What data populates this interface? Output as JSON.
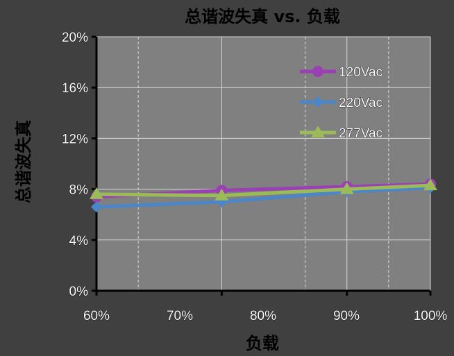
{
  "chart_data": {
    "type": "line",
    "title": "总谐波失真 vs. 负载",
    "xlabel": "负载",
    "ylabel": "总谐波失真",
    "categories": [
      "60%",
      "70%",
      "80%",
      "90%",
      "100%"
    ],
    "x": [
      60,
      75,
      90,
      100
    ],
    "xlim": [
      60,
      100
    ],
    "ylim": [
      0,
      20
    ],
    "y_ticks": [
      "0%",
      "4%",
      "8%",
      "12%",
      "16%",
      "20%"
    ],
    "y_tick_values": [
      0,
      4,
      8,
      12,
      16,
      20
    ],
    "x_tick_values": [
      60,
      70,
      80,
      90,
      100
    ],
    "grid": true,
    "legend_position": "top-right",
    "series": [
      {
        "name": "120Vac",
        "color": "#9b3fb5",
        "marker": "circle",
        "values": [
          7.4,
          7.9,
          8.2,
          8.4
        ]
      },
      {
        "name": "220Vac",
        "color": "#4a86c8",
        "marker": "diamond",
        "values": [
          6.6,
          7.0,
          7.8,
          8.1
        ]
      },
      {
        "name": "277Vac",
        "color": "#9bbb59",
        "marker": "triangle",
        "values": [
          7.6,
          7.5,
          8.0,
          8.3
        ]
      }
    ],
    "colors": {
      "page_background": "#000000",
      "outer_background": "#404040",
      "plot_background": "#808080",
      "gridline": "#d9d9d9",
      "axis": "#000000"
    }
  }
}
